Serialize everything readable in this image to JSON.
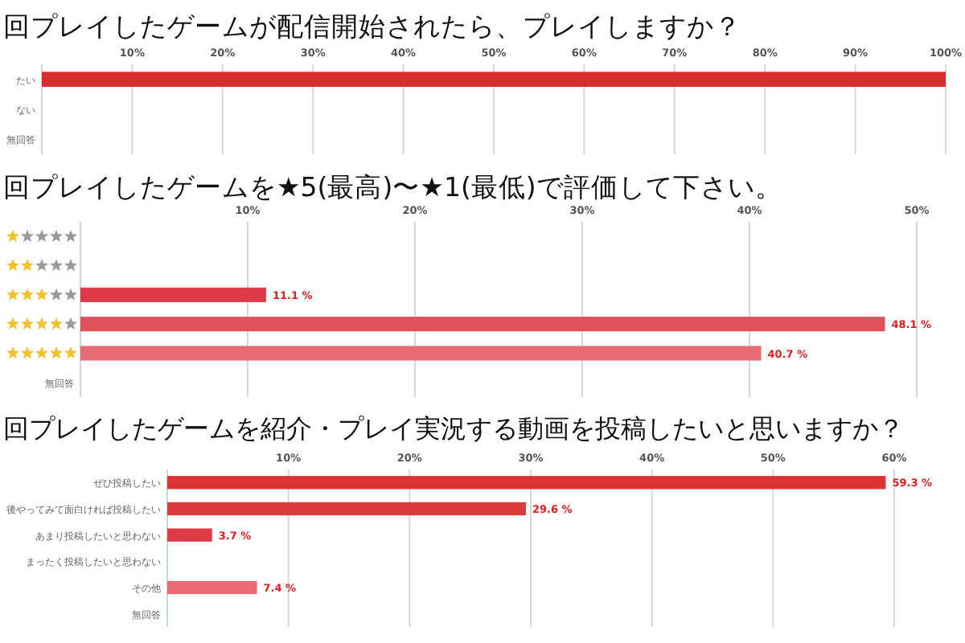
{
  "chart_data": [
    {
      "type": "bar",
      "orientation": "horizontal",
      "title": "回プレイしたゲームが配信開始されたら、プレイしますか？",
      "categories": [
        "たい",
        "ない",
        "無回答"
      ],
      "values": [
        100,
        0,
        0
      ],
      "colors": [
        "#d62e2e",
        "#d62e2e",
        "#d62e2e"
      ],
      "xlim": [
        0,
        100
      ],
      "xticks": [
        {
          "value": 10,
          "label": "10%"
        },
        {
          "value": 20,
          "label": "20%"
        },
        {
          "value": 30,
          "label": "30%"
        },
        {
          "value": 40,
          "label": "40%"
        },
        {
          "value": 50,
          "label": "50%"
        },
        {
          "value": 60,
          "label": "60%"
        },
        {
          "value": 70,
          "label": "70%"
        },
        {
          "value": 80,
          "label": "80%"
        },
        {
          "value": 90,
          "label": "90%"
        },
        {
          "value": 100,
          "label": "100%"
        }
      ],
      "grid": "x"
    },
    {
      "type": "bar",
      "orientation": "horizontal",
      "title": "回プレイしたゲームを★5(最高)〜★1(最低)で評価して下さい。",
      "categories": [
        null,
        null,
        null,
        null,
        null,
        "無回答"
      ],
      "values": [
        0,
        0,
        11.1,
        48.1,
        40.7,
        0
      ],
      "value_labels": [
        null,
        null,
        "11.1 %",
        "48.1 %",
        "40.7 %",
        null
      ],
      "colors": [
        "#de3a47",
        "#de3a47",
        "#de3a47",
        "#e0525b",
        "#e66b73",
        "#e66b73"
      ],
      "xlim": [
        0,
        50
      ],
      "xticks": [
        {
          "value": 10,
          "label": "10%"
        },
        {
          "value": 20,
          "label": "20%"
        },
        {
          "value": 30,
          "label": "30%"
        },
        {
          "value": 40,
          "label": "40%"
        },
        {
          "value": 50,
          "label": "50%"
        }
      ],
      "grid": "x"
    },
    {
      "type": "bar",
      "orientation": "horizontal",
      "title": "回プレイしたゲームを紹介・プレイ実況する動画を投稿したいと思いますか？",
      "categories": [
        "ぜひ投稿したい",
        "後やってみて面白ければ投稿したい",
        "あまり投稿したいと思わない",
        "まったく投稿したいと思わない",
        "その他",
        "無回答"
      ],
      "values": [
        59.3,
        29.6,
        3.7,
        0,
        7.4,
        0
      ],
      "value_labels": [
        "59.3 %",
        "29.6 %",
        "3.7 %",
        null,
        "7.4 %",
        null
      ],
      "colors": [
        "#d93333",
        "#db3a3a",
        "#de3a47",
        "#e0525b",
        "#e66b73",
        "#e66b73"
      ],
      "xlim": [
        0,
        60
      ],
      "xticks": [
        {
          "value": 10,
          "label": "10%"
        },
        {
          "value": 20,
          "label": "20%"
        },
        {
          "value": 30,
          "label": "30%"
        },
        {
          "value": 40,
          "label": "40%"
        },
        {
          "value": 50,
          "label": "50%"
        },
        {
          "value": 60,
          "label": "60%"
        }
      ],
      "grid": "x"
    }
  ]
}
